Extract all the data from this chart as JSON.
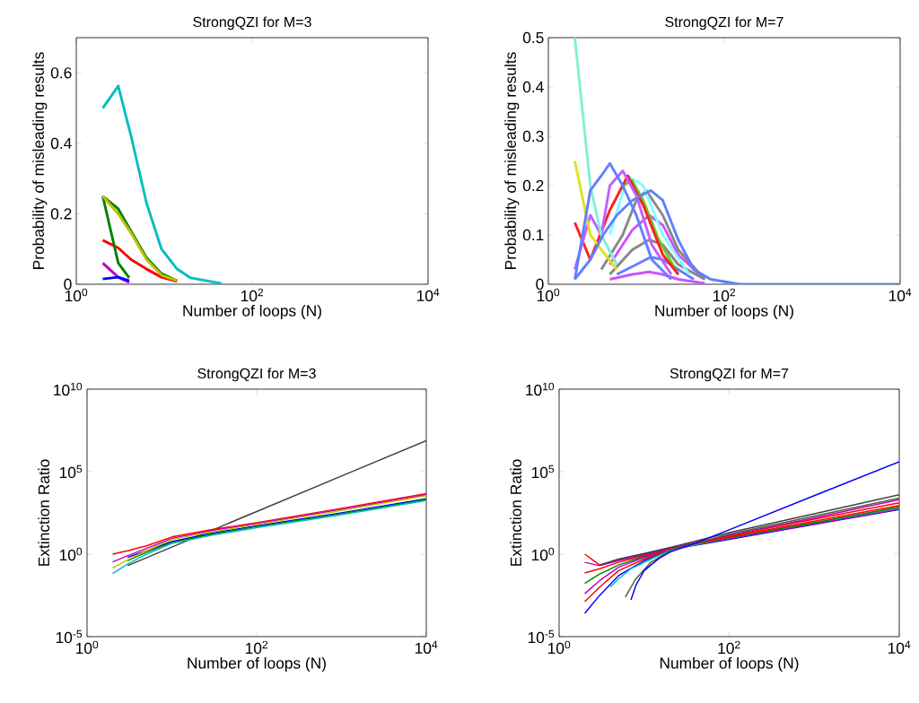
{
  "chart_data": [
    {
      "type": "line",
      "title": "StrongQZI for M=3",
      "xlabel": "Number of loops (N)",
      "ylabel": "Probability of misleading results",
      "log": "x",
      "xlim": [
        1,
        10000
      ],
      "ylim": [
        0,
        0.7
      ],
      "xticks": [
        {
          "value": 1,
          "label": "10$^{0}$"
        },
        {
          "value": 100,
          "label": "10$^{2}$"
        },
        {
          "value": 10000,
          "label": "10$^{4}$"
        }
      ],
      "yticks": [
        0,
        0.2,
        0.4,
        0.6
      ],
      "legend": false,
      "marker": "none",
      "series": [
        {
          "color": "#bf00bf",
          "x": [
            2,
            3,
            4
          ],
          "values": [
            0.06,
            0.02,
            0.005
          ]
        },
        {
          "color": "#ff0000",
          "x": [
            2,
            3,
            4.2,
            6.3,
            9.3,
            14
          ],
          "values": [
            0.125,
            0.103,
            0.07,
            0.043,
            0.02,
            0.008
          ]
        },
        {
          "color": "#008000",
          "x": [
            2,
            3,
            4
          ],
          "values": [
            0.25,
            0.06,
            0.018
          ]
        },
        {
          "color": "#008000",
          "x": [
            2,
            3,
            4.2,
            6.3,
            9.3,
            14
          ],
          "values": [
            0.25,
            0.214,
            0.15,
            0.075,
            0.03,
            0.01
          ]
        },
        {
          "color": "#bfbf00",
          "x": [
            2,
            3,
            4.2,
            6.3,
            9.3,
            14
          ],
          "values": [
            0.25,
            0.2,
            0.145,
            0.07,
            0.026,
            0.01
          ]
        },
        {
          "color": "#00bfbf",
          "x": [
            2,
            3,
            4.2,
            6.3,
            9.3,
            14,
            20,
            45
          ],
          "values": [
            0.5,
            0.563,
            0.42,
            0.23,
            0.1,
            0.043,
            0.018,
            0.002
          ]
        },
        {
          "color": "#0000ff",
          "x": [
            2,
            3,
            4
          ],
          "values": [
            0.015,
            0.02,
            0.01
          ]
        }
      ]
    },
    {
      "type": "line",
      "title": "StrongQZI for M=7",
      "xlabel": "Number of loops (N)",
      "ylabel": "Probability of misleading results",
      "log": "x",
      "xlim": [
        1,
        10000
      ],
      "ylim": [
        0,
        0.5
      ],
      "xticks": [
        {
          "value": 1,
          "label": "10$^{0}$"
        },
        {
          "value": 100,
          "label": "10$^{2}$"
        },
        {
          "value": 10000,
          "label": "10$^{4}$"
        }
      ],
      "yticks": [
        0,
        0.1,
        0.2,
        0.3,
        0.4,
        0.5
      ],
      "legend": false,
      "marker": "none",
      "series": [
        {
          "color": "#d050ff",
          "x": [
            5,
            9,
            14,
            20,
            30,
            60
          ],
          "values": [
            0.01,
            0.02,
            0.025,
            0.02,
            0.01,
            0.002
          ]
        },
        {
          "color": "#6080ff",
          "x": [
            6,
            10,
            14.6,
            20,
            30,
            45
          ],
          "values": [
            0.02,
            0.04,
            0.055,
            0.05,
            0.03,
            0.01
          ]
        },
        {
          "color": "#888888",
          "x": [
            5,
            9,
            14,
            20,
            30,
            60
          ],
          "values": [
            0.02,
            0.07,
            0.09,
            0.08,
            0.04,
            0.01
          ]
        },
        {
          "color": "#d050ff",
          "x": [
            5,
            9,
            14,
            20,
            30,
            60
          ],
          "values": [
            0.04,
            0.11,
            0.14,
            0.12,
            0.06,
            0.01
          ]
        },
        {
          "color": "#888888",
          "x": [
            4,
            7,
            10,
            13,
            20,
            30,
            60
          ],
          "values": [
            0.03,
            0.1,
            0.17,
            0.19,
            0.14,
            0.07,
            0.01
          ]
        },
        {
          "color": "#80ffff",
          "x": [
            5,
            8,
            12,
            20,
            40
          ],
          "values": [
            0.1,
            0.22,
            0.2,
            0.1,
            0.02
          ]
        },
        {
          "color": "#60d020",
          "x": [
            7,
            9,
            12,
            18,
            30
          ],
          "values": [
            0.2,
            0.21,
            0.17,
            0.09,
            0.02
          ]
        },
        {
          "color": "#ff2020",
          "x": [
            2,
            3,
            5,
            8,
            12,
            20,
            30
          ],
          "values": [
            0.125,
            0.05,
            0.15,
            0.22,
            0.16,
            0.06,
            0.02
          ]
        },
        {
          "color": "#c060ff",
          "x": [
            2,
            3,
            4,
            5,
            7,
            10,
            15,
            25
          ],
          "values": [
            0.03,
            0.14,
            0.1,
            0.2,
            0.23,
            0.18,
            0.08,
            0.02
          ]
        },
        {
          "color": "#e0e020",
          "x": [
            2,
            3,
            4,
            6
          ],
          "values": [
            0.25,
            0.1,
            0.07,
            0.03
          ]
        },
        {
          "color": "#80f0d8",
          "x": [
            2,
            3,
            4,
            6
          ],
          "values": [
            0.5,
            0.2,
            0.1,
            0.04
          ]
        },
        {
          "color": "#6080ff",
          "x": [
            2,
            3,
            4,
            5,
            7,
            10,
            15,
            25
          ],
          "values": [
            0.01,
            0.19,
            0.22,
            0.245,
            0.2,
            0.14,
            0.05,
            0.01
          ]
        },
        {
          "color": "#6080ff",
          "x": [
            2,
            3,
            4.2,
            6,
            9,
            14.6,
            20,
            30,
            45,
            70,
            150,
            10000
          ],
          "values": [
            0.01,
            0.05,
            0.1,
            0.14,
            0.17,
            0.19,
            0.17,
            0.09,
            0.03,
            0.01,
            0,
            0
          ]
        }
      ]
    },
    {
      "type": "line",
      "title": "StrongQZI for M=3",
      "xlabel": "Number of loops (N)",
      "ylabel": "Extinction Ratio",
      "log": "xy",
      "xlim": [
        1,
        10000
      ],
      "ylim": [
        1e-05,
        10000000000
      ],
      "xticks": [
        {
          "value": 1,
          "label": "10$^{0}$"
        },
        {
          "value": 100,
          "label": "10$^{2}$"
        },
        {
          "value": 10000,
          "label": "10$^{4}$"
        }
      ],
      "yticks": [
        {
          "value": 1e-05,
          "label": "10$^{-5}$"
        },
        {
          "value": 1,
          "label": "10$^{0}$"
        },
        {
          "value": 100000,
          "label": "10$^{5}$"
        },
        {
          "value": 10000000000,
          "label": "10$^{10}$"
        }
      ],
      "legend": false,
      "marker": "none",
      "series": [
        {
          "color": "#404040",
          "x": [
            3,
            10,
            100,
            1000,
            10000
          ],
          "values": [
            0.2,
            2.7,
            380,
            54000,
            7600000
          ]
        },
        {
          "color": "#0000ff",
          "x": [
            3,
            5,
            10,
            30,
            100,
            1000,
            10000
          ],
          "values": [
            0.63,
            1.6,
            5.8,
            19,
            52,
            320,
            2300
          ]
        },
        {
          "color": "#008000",
          "x": [
            3,
            5,
            10,
            30,
            100,
            1000,
            10000
          ],
          "values": [
            0.4,
            1.3,
            5,
            16,
            46,
            280,
            2000
          ]
        },
        {
          "color": "#00bfbf",
          "x": [
            2,
            3,
            5,
            10,
            30,
            100,
            1000,
            10000
          ],
          "values": [
            0.066,
            0.25,
            1,
            4.4,
            14,
            40,
            245,
            1750
          ]
        },
        {
          "color": "#ff0000",
          "x": [
            2,
            3,
            5,
            10,
            30,
            100,
            1000,
            10000
          ],
          "values": [
            1,
            1.6,
            3.2,
            11,
            31,
            80,
            600,
            4600
          ]
        },
        {
          "color": "#bf00bf",
          "x": [
            2,
            3,
            5,
            10,
            30,
            100,
            1000,
            10000
          ],
          "values": [
            0.34,
            0.79,
            2.2,
            8.9,
            27,
            71,
            520,
            4000
          ]
        },
        {
          "color": "#bfbf00",
          "x": [
            2,
            3,
            5,
            10,
            30,
            100,
            1000,
            10000
          ],
          "values": [
            0.14,
            0.45,
            1.6,
            7.9,
            23,
            63,
            450,
            3500
          ]
        }
      ]
    },
    {
      "type": "line",
      "title": "StrongQZI for M=7",
      "xlabel": "Number of loops (N)",
      "ylabel": "Extinction Ratio",
      "log": "xy",
      "xlim": [
        1,
        10000
      ],
      "ylim": [
        1e-05,
        10000000000
      ],
      "xticks": [
        {
          "value": 1,
          "label": "10$^{0}$"
        },
        {
          "value": 100,
          "label": "10$^{2}$"
        },
        {
          "value": 10000,
          "label": "10$^{4}$"
        }
      ],
      "yticks": [
        {
          "value": 1e-05,
          "label": "10$^{-5}$"
        },
        {
          "value": 1,
          "label": "10$^{0}$"
        },
        {
          "value": 100000,
          "label": "10$^{5}$"
        },
        {
          "value": 10000000000,
          "label": "10$^{10}$"
        }
      ],
      "legend": false,
      "marker": "none",
      "series": [
        {
          "color": "#0000ff",
          "x": [
            2,
            3,
            5,
            10,
            22,
            100,
            1000,
            10000
          ],
          "values": [
            0.00026,
            0.0032,
            0.05,
            0.4,
            2,
            7.9,
            63,
            500
          ]
        },
        {
          "color": "#ff0000",
          "x": [
            2,
            3,
            5,
            10,
            22,
            100,
            1000,
            10000
          ],
          "values": [
            0.0013,
            0.01,
            0.1,
            0.5,
            2.1,
            8.9,
            71,
            560
          ]
        },
        {
          "color": "#bf00bf",
          "x": [
            2,
            3,
            5,
            10,
            22,
            100,
            1000,
            10000
          ],
          "values": [
            0.004,
            0.025,
            0.16,
            0.63,
            2.2,
            8.9,
            71,
            560
          ]
        },
        {
          "color": "#00bfbf",
          "x": [
            4,
            5,
            7,
            12,
            22,
            100,
            1000,
            10000
          ],
          "values": [
            0.01,
            0.032,
            0.13,
            0.5,
            2,
            10,
            79,
            630
          ]
        },
        {
          "color": "#008000",
          "x": [
            2,
            3,
            5,
            10,
            22,
            100,
            1000,
            10000
          ],
          "values": [
            0.017,
            0.063,
            0.22,
            0.71,
            2.3,
            10,
            79,
            710
          ]
        },
        {
          "color": "#ff0000",
          "x": [
            2,
            3,
            5,
            10,
            22,
            100,
            1000,
            10000
          ],
          "values": [
            0.072,
            0.13,
            0.32,
            0.79,
            2.4,
            11,
            100,
            890
          ]
        },
        {
          "color": "#ff0000",
          "x": [
            2,
            3,
            5,
            10,
            22,
            100,
            1000,
            10000
          ],
          "values": [
            1,
            0.22,
            0.45,
            1,
            2.5,
            13,
            130,
            1300
          ]
        },
        {
          "color": "#bf00bf",
          "x": [
            2,
            3,
            5,
            10,
            22,
            100,
            1000,
            10000
          ],
          "values": [
            0.32,
            0.2,
            0.4,
            0.89,
            2.5,
            14,
            160,
            2000
          ]
        },
        {
          "color": "#4d5d3d",
          "x": [
            6,
            8,
            12,
            22,
            100,
            1000,
            10000
          ],
          "values": [
            0.0025,
            0.032,
            0.32,
            2,
            16,
            200,
            2500
          ]
        },
        {
          "color": "#404040",
          "x": [
            3,
            5,
            10,
            22,
            100,
            1000,
            10000
          ],
          "values": [
            0.22,
            0.5,
            1.1,
            2.8,
            20,
            280,
            4000
          ]
        },
        {
          "color": "#0000ff",
          "x": [
            7,
            8,
            10,
            15,
            20,
            40,
            100,
            1000,
            10000
          ],
          "values": [
            0.0017,
            0.013,
            0.1,
            0.56,
            1.3,
            4.7,
            30,
            3500,
            400000
          ]
        }
      ]
    }
  ]
}
